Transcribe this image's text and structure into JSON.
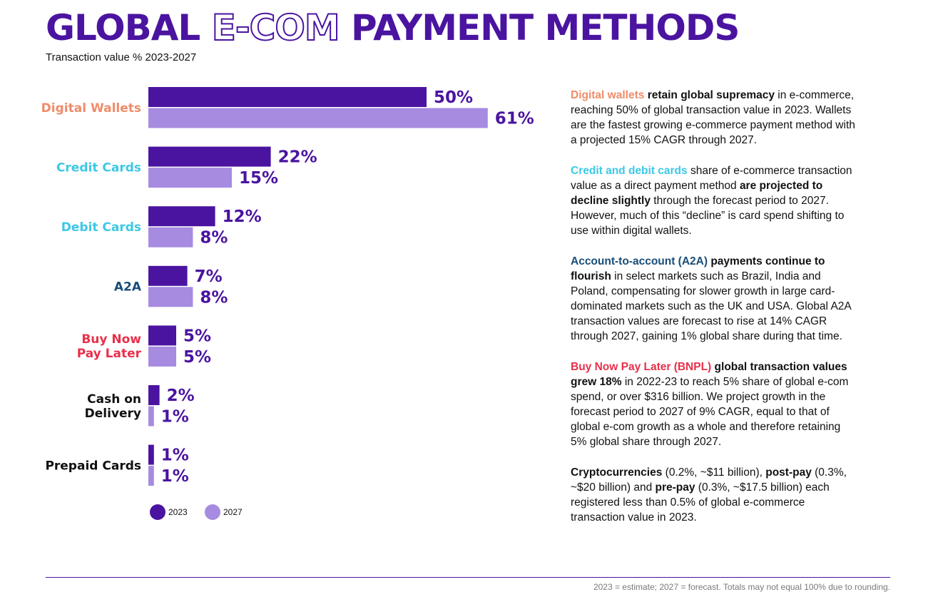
{
  "title": {
    "part1": "GLOBAL",
    "part2": "E-COM",
    "part3": "PAYMENT METHODS"
  },
  "subtitle": "Transaction value % 2023-2027",
  "colors": {
    "dark": "#4a14a0",
    "light": "#a68be0",
    "orange": "#f08c6a",
    "cyan": "#3cc8e6",
    "navy": "#1a4d78",
    "red": "#e8304a",
    "black": "#111111"
  },
  "chart_data": {
    "type": "bar",
    "orientation": "horizontal",
    "categories": [
      "Digital Wallets",
      "Credit Cards",
      "Debit Cards",
      "A2A",
      "Buy Now Pay Later",
      "Cash on Delivery",
      "Prepaid Cards"
    ],
    "category_lines": [
      [
        "Digital Wallets"
      ],
      [
        "Credit Cards"
      ],
      [
        "Debit Cards"
      ],
      [
        "A2A"
      ],
      [
        "Buy Now",
        "Pay Later"
      ],
      [
        "Cash on",
        "Delivery"
      ],
      [
        "Prepaid Cards"
      ]
    ],
    "category_colors": [
      "orange",
      "cyan",
      "cyan",
      "navy",
      "red",
      "black",
      "black"
    ],
    "series": [
      {
        "name": "2023",
        "values": [
          50,
          22,
          12,
          7,
          5,
          2,
          1
        ],
        "labels": [
          "50%",
          "22%",
          "12%",
          "7%",
          "5%",
          "2%",
          "1%"
        ],
        "color": "#4a14a0"
      },
      {
        "name": "2027",
        "values": [
          61,
          15,
          8,
          8,
          5,
          1,
          1
        ],
        "labels": [
          "61%",
          "15%",
          "8%",
          "8%",
          "5%",
          "1%",
          "1%"
        ],
        "color": "#a68be0"
      }
    ],
    "legend": "bottom-left"
  },
  "paragraphs": [
    [
      {
        "t": "Digital wallets",
        "c": "orange"
      },
      {
        "t": " "
      },
      {
        "t": "retain global supremacy",
        "b": true
      },
      {
        "t": " in e-commerce, reaching 50% of global transaction value in 2023. Wallets are the fastest growing e-commerce payment method with a projected 15% CAGR through 2027."
      }
    ],
    [
      {
        "t": "Credit and debit cards",
        "c": "cyan"
      },
      {
        "t": " share of e-commerce transaction value as a direct payment method "
      },
      {
        "t": "are projected to decline slightly",
        "b": true
      },
      {
        "t": " through the forecast period to 2027. However, much of this “decline” is card spend shifting to use within digital wallets."
      }
    ],
    [
      {
        "t": "Account-to-account (A2A)",
        "c": "navy"
      },
      {
        "t": " "
      },
      {
        "t": "payments continue to flourish",
        "b": true
      },
      {
        "t": " in select markets such as Brazil, India and Poland, compensating for slower growth in large card-dominated markets such as the UK and USA. Global A2A transaction values are forecast to rise at 14% CAGR through 2027, gaining 1% global share during that time."
      }
    ],
    [
      {
        "t": "Buy Now Pay Later (BNPL)",
        "c": "red"
      },
      {
        "t": " "
      },
      {
        "t": "global transaction values grew 18%",
        "b": true
      },
      {
        "t": " in 2022-23 to reach 5% share of global e-com spend, or over $316 billion. We project growth in the forecast period to 2027 of 9% CAGR, equal to that of global e-com growth as a whole and therefore retaining 5% global share through 2027."
      }
    ],
    [
      {
        "t": "Cryptocurrencies",
        "b": true
      },
      {
        "t": " (0.2%, ~$11 billion), "
      },
      {
        "t": "post-pay",
        "b": true
      },
      {
        "t": " (0.3%, ~$20 billion) and "
      },
      {
        "t": "pre-pay",
        "b": true
      },
      {
        "t": " (0.3%, ~$17.5 billion) each registered less than 0.5% of global e-commerce transaction value in 2023."
      }
    ]
  ],
  "footnote": "2023 = estimate; 2027 = forecast. Totals may not equal 100% due to rounding."
}
